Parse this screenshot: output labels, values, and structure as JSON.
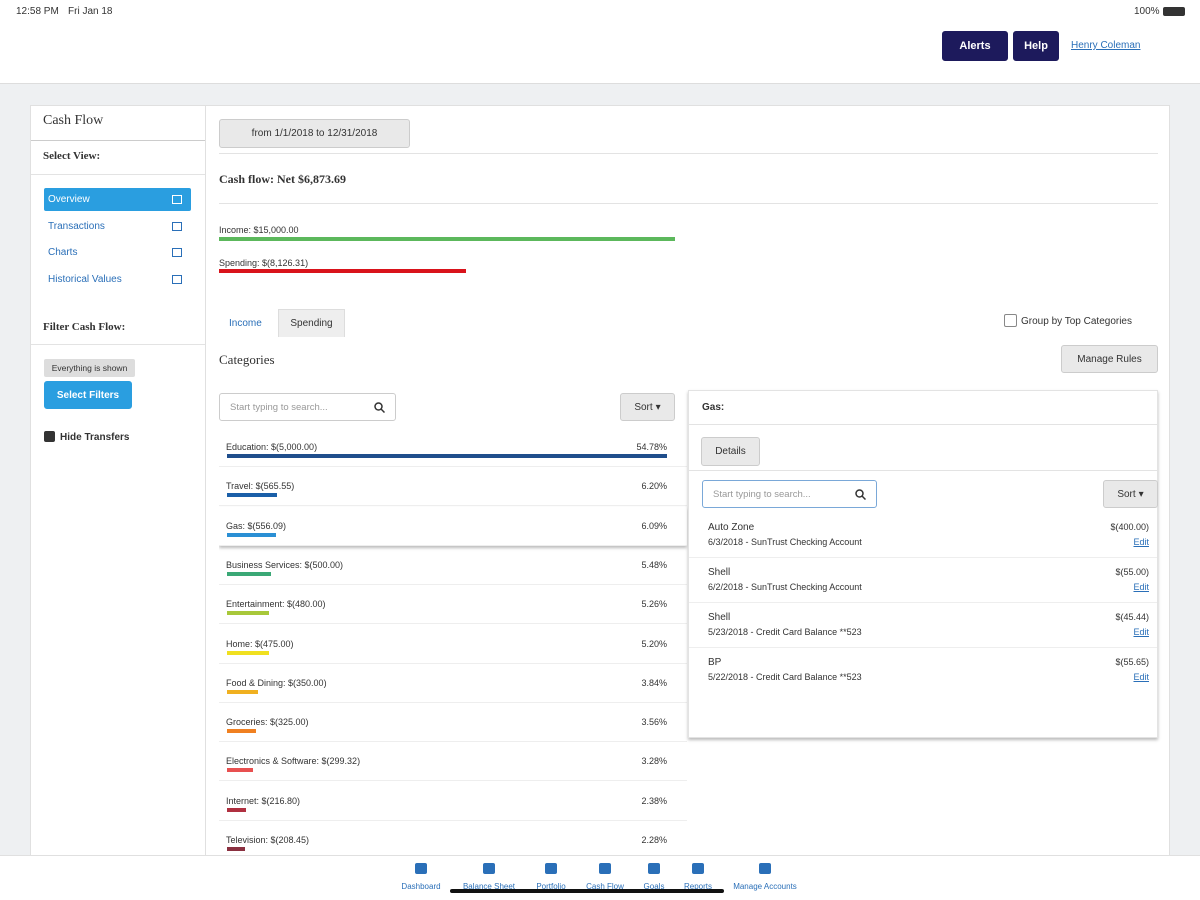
{
  "status": {
    "time": "12:58 PM",
    "date": "Fri Jan 18",
    "battery": "100%"
  },
  "header": {
    "alerts": "Alerts",
    "help": "Help",
    "user": "Henry Coleman"
  },
  "sidebar": {
    "title": "Cash Flow",
    "select_view": "Select View:",
    "views": [
      "Overview",
      "Transactions",
      "Charts",
      "Historical Values"
    ],
    "filter_title": "Filter Cash Flow:",
    "filter_status": "Everything is shown",
    "select_filters": "Select Filters",
    "hide_transfers": "Hide Transfers"
  },
  "main": {
    "date_range": "from 1/1/2018 to 12/31/2018",
    "net": "Cash flow: Net $6,873.69",
    "income": {
      "value": 15000,
      "label": "Income: $15,000.00",
      "color": "#5cb85c"
    },
    "spending": {
      "value": -8126.31,
      "label": "Spending: $(8,126.31)",
      "color": "#d9131b"
    },
    "tabs": [
      "Income",
      "Spending"
    ],
    "group_by": "Group by Top Categories",
    "categories_title": "Categories",
    "manage_rules": "Manage Rules",
    "search_placeholder": "Start typing to search...",
    "sort": "Sort"
  },
  "categories": [
    {
      "label": "Education: $(5,000.00)",
      "share": {
        "value": 54.78,
        "label": "54.78%"
      },
      "color": "#1f4e8c"
    },
    {
      "label": "Travel: $(565.55)",
      "share": {
        "value": 6.2,
        "label": "6.20%"
      },
      "color": "#1a5fa8"
    },
    {
      "label": "Gas: $(556.09)",
      "share": {
        "value": 6.09,
        "label": "6.09%"
      },
      "color": "#2a8fd4"
    },
    {
      "label": "Business Services: $(500.00)",
      "share": {
        "value": 5.48,
        "label": "5.48%"
      },
      "color": "#3aa876"
    },
    {
      "label": "Entertainment: $(480.00)",
      "share": {
        "value": 5.26,
        "label": "5.26%"
      },
      "color": "#a8c83a"
    },
    {
      "label": "Home: $(475.00)",
      "share": {
        "value": 5.2,
        "label": "5.20%"
      },
      "color": "#f0e020"
    },
    {
      "label": "Food & Dining: $(350.00)",
      "share": {
        "value": 3.84,
        "label": "3.84%"
      },
      "color": "#f0b020"
    },
    {
      "label": "Groceries: $(325.00)",
      "share": {
        "value": 3.56,
        "label": "3.56%"
      },
      "color": "#f08020"
    },
    {
      "label": "Electronics & Software: $(299.32)",
      "share": {
        "value": 3.28,
        "label": "3.28%"
      },
      "color": "#e85050"
    },
    {
      "label": "Internet: $(216.80)",
      "share": {
        "value": 2.38,
        "label": "2.38%"
      },
      "color": "#b03040"
    },
    {
      "label": "Television: $(208.45)",
      "share": {
        "value": 2.28,
        "label": "2.28%"
      },
      "color": "#8a3040"
    }
  ],
  "detail": {
    "title": "Gas:",
    "details": "Details",
    "search_placeholder": "Start typing to search...",
    "sort": "Sort",
    "transactions": [
      {
        "name": "Auto Zone",
        "info": "6/3/2018 - SunTrust Checking Account",
        "amount": "$(400.00)",
        "edit": "Edit"
      },
      {
        "name": "Shell",
        "info": "6/2/2018 - SunTrust Checking Account",
        "amount": "$(55.00)",
        "edit": "Edit"
      },
      {
        "name": "Shell",
        "info": "5/23/2018 - Credit Card Balance **523",
        "amount": "$(45.44)",
        "edit": "Edit"
      },
      {
        "name": "BP",
        "info": "5/22/2018 - Credit Card Balance **523",
        "amount": "$(55.65)",
        "edit": "Edit"
      }
    ]
  },
  "nav": [
    "Dashboard",
    "Balance Sheet",
    "Portfolio",
    "Cash Flow",
    "Goals",
    "Reports",
    "Manage Accounts"
  ]
}
